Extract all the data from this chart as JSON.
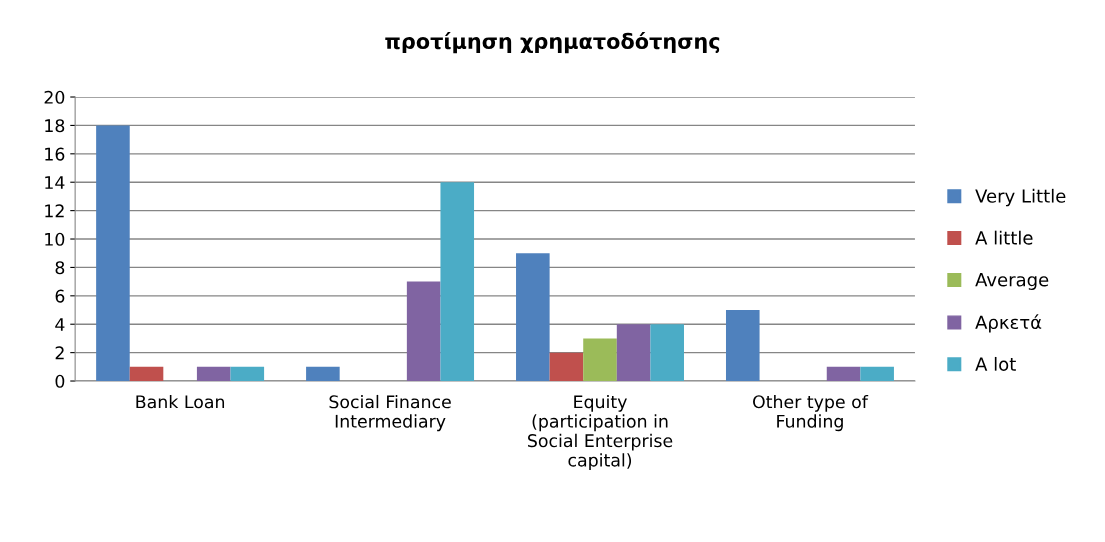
{
  "chart_data": {
    "type": "bar",
    "title": "προτίμηση χρηματοδότησης",
    "categories": [
      "Bank Loan",
      "Social Finance\nIntermediary",
      "Equity\n(participation in\nSocial Enterprise\ncapital)",
      "Other type of\nFunding"
    ],
    "series": [
      {
        "name": "Very Little",
        "color": "#4f81bd",
        "values": [
          18,
          1,
          9,
          5
        ]
      },
      {
        "name": "A little",
        "color": "#c0504d",
        "values": [
          1,
          0,
          2,
          0
        ]
      },
      {
        "name": "Average",
        "color": "#9bbb59",
        "values": [
          0,
          0,
          3,
          0
        ]
      },
      {
        "name": "Αρκετά",
        "color": "#8064a2",
        "values": [
          1,
          7,
          4,
          1
        ]
      },
      {
        "name": "A lot",
        "color": "#4bacc6",
        "values": [
          1,
          14,
          4,
          1
        ]
      }
    ],
    "ylim": [
      0,
      20
    ],
    "yticks": [
      0,
      2,
      4,
      6,
      8,
      10,
      12,
      14,
      16,
      18,
      20
    ],
    "grid": "y",
    "legend": "right"
  }
}
